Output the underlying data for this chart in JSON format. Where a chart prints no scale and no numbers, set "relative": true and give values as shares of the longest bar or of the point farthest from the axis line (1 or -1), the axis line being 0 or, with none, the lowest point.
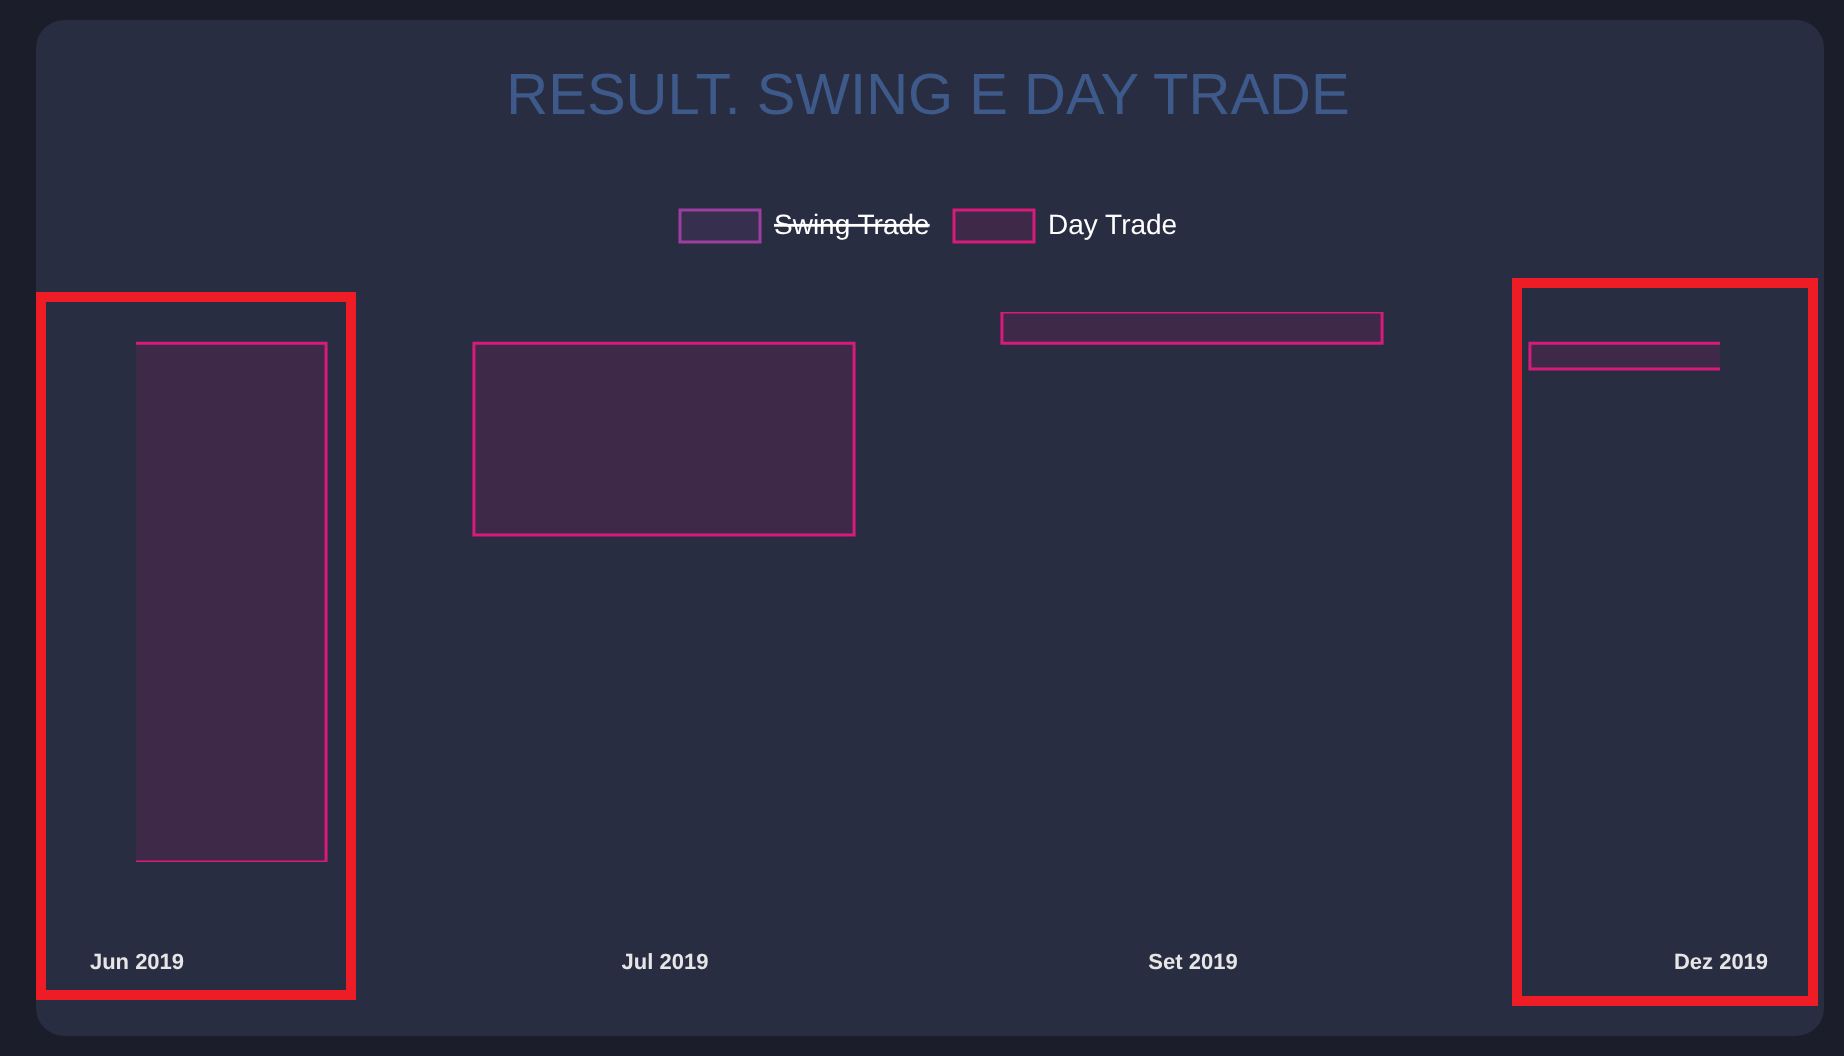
{
  "chart_data": {
    "type": "bar",
    "title": "RESULT. SWING E DAY TRADE",
    "categories": [
      "Jun 2019",
      "Jul 2019",
      "Set 2019",
      "Dez 2019"
    ],
    "relative": true,
    "legend": "top",
    "series": [
      {
        "name": "Swing Trade",
        "color": "#9c3fa0",
        "values": [
          null,
          null,
          null,
          null
        ]
      },
      {
        "name": "Day Trade",
        "color": "#d81b7a",
        "values": [
          -1,
          -0.37,
          0.06,
          -0.05
        ]
      }
    ]
  }
}
